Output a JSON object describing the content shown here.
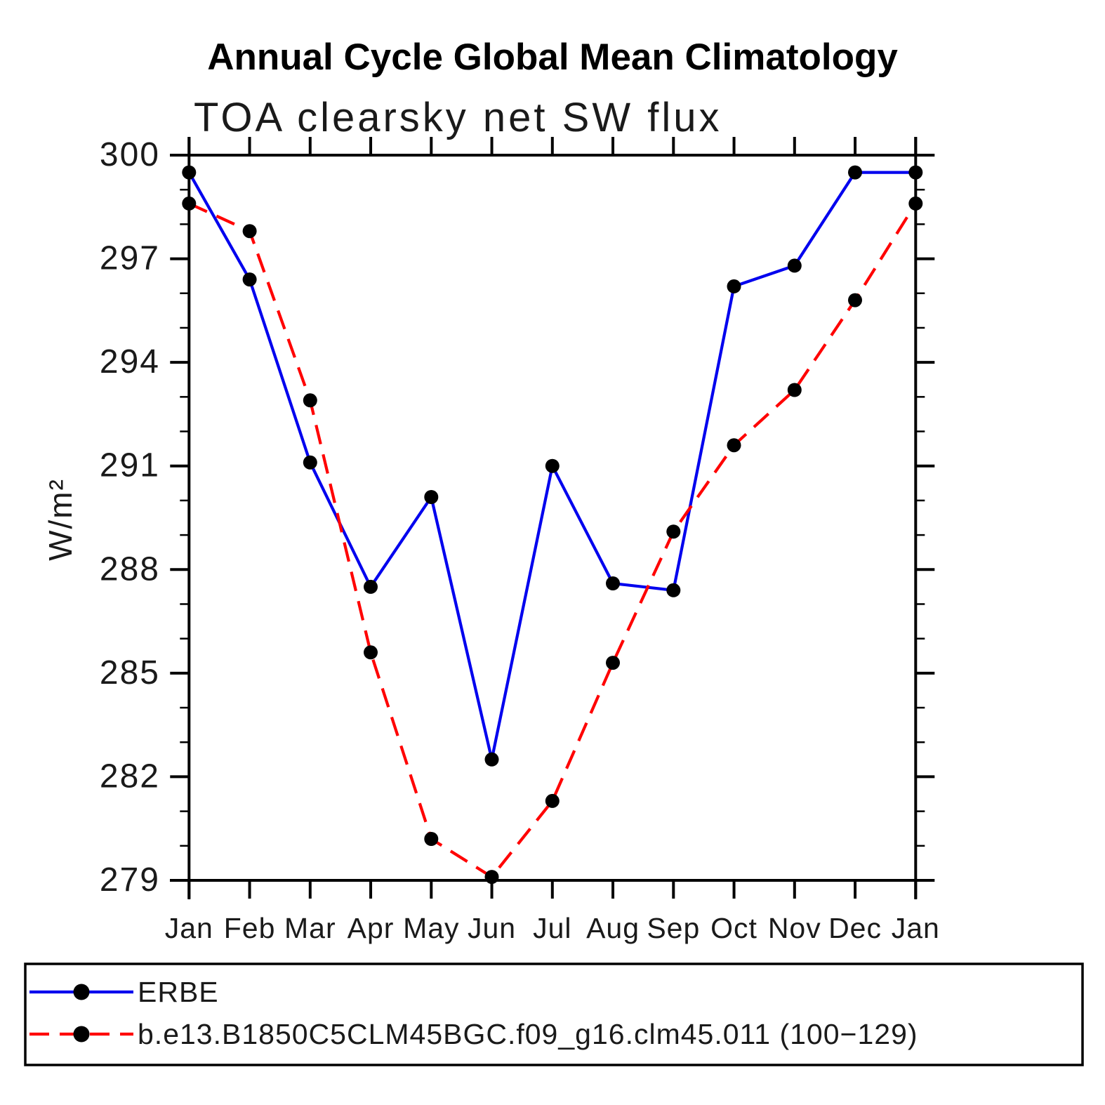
{
  "title": "Annual Cycle Global Mean Climatology",
  "subtitle": "TOA clearsky net SW flux",
  "chart_data": {
    "type": "line",
    "title": "Annual Cycle Global Mean Climatology",
    "subtitle": "TOA clearsky net SW flux",
    "xlabel": "",
    "ylabel": "W/m²",
    "x_categories": [
      "Jan",
      "Feb",
      "Mar",
      "Apr",
      "May",
      "Jun",
      "Jul",
      "Aug",
      "Sep",
      "Oct",
      "Nov",
      "Dec",
      "Jan"
    ],
    "ylim": [
      279,
      300
    ],
    "ytick_major": [
      300,
      297,
      294,
      291,
      288,
      285,
      282,
      279
    ],
    "ytick_minor_step": 1,
    "grid": false,
    "legend_position": "bottom-left-box",
    "marker": "filled-circle",
    "marker_color": "#000000",
    "series": [
      {
        "name": "ERBE",
        "color": "#0000ee",
        "line_style": "solid",
        "values": [
          299.5,
          296.4,
          291.1,
          287.5,
          290.1,
          282.5,
          291.0,
          287.6,
          287.4,
          296.2,
          296.8,
          299.5,
          299.5
        ]
      },
      {
        "name": "b.e13.B1850C5CLM45BGC.f09_g16.clm45.011 (100−129)",
        "color": "#ff0000",
        "line_style": "dashed",
        "values": [
          298.6,
          297.8,
          292.9,
          285.6,
          280.2,
          279.1,
          281.3,
          285.3,
          289.1,
          291.6,
          293.2,
          295.8,
          298.6
        ]
      }
    ]
  }
}
